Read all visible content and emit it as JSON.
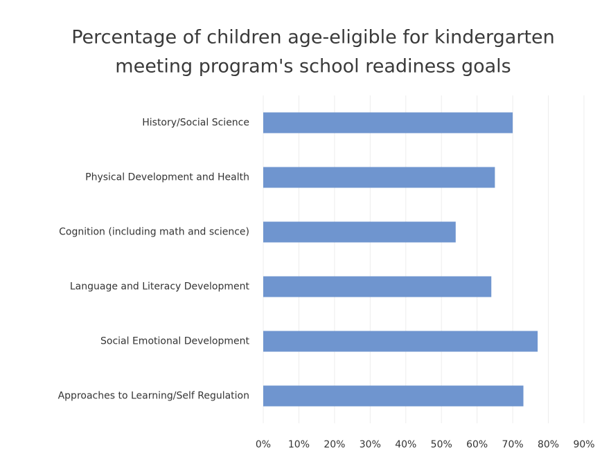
{
  "chart_data": {
    "type": "barh",
    "title": [
      "Percentage of children age-eligible for kindergarten",
      "meeting program's school readiness goals"
    ],
    "categories": [
      "History/Social Science",
      "Physical Development and Health",
      "Cognition (including math and science)",
      "Language and Literacy Development",
      "Social Emotional Development",
      "Approaches to Learning/Self Regulation"
    ],
    "values": [
      70,
      65,
      54,
      64,
      77,
      73
    ],
    "color": "#6f95cf",
    "xlim": [
      0,
      90
    ],
    "xticks": [
      {
        "value": 0,
        "label": "0%"
      },
      {
        "value": 10,
        "label": "10%"
      },
      {
        "value": 20,
        "label": "20%"
      },
      {
        "value": 30,
        "label": "30%"
      },
      {
        "value": 40,
        "label": "40%"
      },
      {
        "value": 50,
        "label": "50%"
      },
      {
        "value": 60,
        "label": "60%"
      },
      {
        "value": 70,
        "label": "70%"
      },
      {
        "value": 80,
        "label": "80%"
      },
      {
        "value": 90,
        "label": "90%"
      }
    ],
    "grid": true
  }
}
